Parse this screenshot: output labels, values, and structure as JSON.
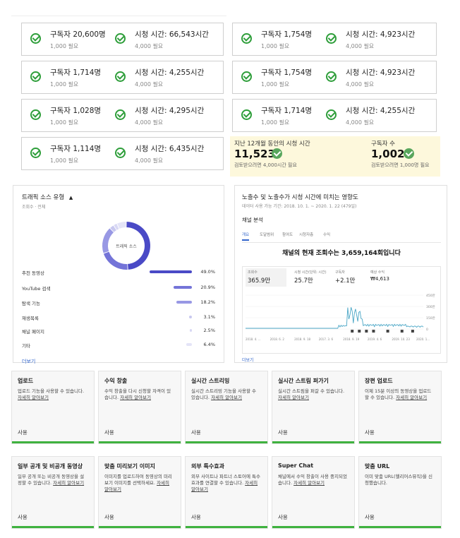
{
  "requirements": [
    {
      "a": {
        "label": "구독자 20,600명",
        "req": "1,000 필요"
      },
      "b": {
        "label": "시청 시간: 66,543시간",
        "req": "4,000 필요"
      }
    },
    {
      "a": {
        "label": "구독자 1,754명",
        "req": "1,000 필요"
      },
      "b": {
        "label": "시청 시간: 4,923시간",
        "req": "4,000 필요"
      }
    },
    {
      "a": {
        "label": "구독자 1,714명",
        "req": "1,000 필요"
      },
      "b": {
        "label": "시청 시간: 4,255시간",
        "req": "4,000 필요"
      }
    },
    {
      "a": {
        "label": "구독자 1,754명",
        "req": "1,000 필요"
      },
      "b": {
        "label": "시청 시간: 4,923시간",
        "req": "4,000 필요"
      }
    },
    {
      "a": {
        "label": "구독자 1,028명",
        "req": "1,000 필요"
      },
      "b": {
        "label": "시청 시간: 4,295시간",
        "req": "4,000 필요"
      }
    },
    {
      "a": {
        "label": "구독자 1,714명",
        "req": "1,000 필요"
      },
      "b": {
        "label": "시청 시간: 4,255시간",
        "req": "4,000 필요"
      }
    },
    {
      "a": {
        "label": "구독자 1,114명",
        "req": "1,000 필요"
      },
      "b": {
        "label": "시청 시간: 6,435시간",
        "req": "4,000 필요"
      }
    }
  ],
  "eligibility": {
    "watch_title": "지난 12개월 동안의 시청 시간",
    "watch_value": "11,523",
    "watch_note": "검토받으려면 4,000시간 필요",
    "subs_title": "구독자 수",
    "subs_value": "1,002",
    "subs_note": "검토받으려면 1,000명 필요",
    "bg_color": "#fdf8dc",
    "check_color": "#58a65c"
  },
  "traffic": {
    "title": "트래픽 소스 유형",
    "subtitle": "조회수 · 전체",
    "donut_label": "트래픽 소스",
    "rows": [
      {
        "label": "추천 동영상",
        "value": "49.0%",
        "pct": 49.0
      },
      {
        "label": "YouTube 검색",
        "value": "20.9%",
        "pct": 20.9
      },
      {
        "label": "탐색 기능",
        "value": "18.2%",
        "pct": 18.2
      },
      {
        "label": "재생목록",
        "value": "3.1%",
        "pct": 3.1
      },
      {
        "label": "채널 페이지",
        "value": "2.5%",
        "pct": 2.5
      },
      {
        "label": "기타",
        "value": "6.4%",
        "pct": 6.4
      }
    ],
    "more": "더보기",
    "accent": "#5454cc"
  },
  "impressions": {
    "title": "노출수 및 노출수가 시청 시간에 미치는 영향도",
    "subtitle": "데이터 사용 가능 기간: 2018. 10. 1. ~ 2020. 1. 22 (479일)",
    "channel": "채널 분석",
    "tabs": [
      "개요",
      "도달범위",
      "참여도",
      "시청자층",
      "수익"
    ],
    "headline": "채널의 현재 조회수는 3,659,164회입니다",
    "metrics": [
      {
        "name": "조회수",
        "value": "365.9만"
      },
      {
        "name": "시청 시간(단위: 시간)",
        "value": "25.7만"
      },
      {
        "name": "구독자",
        "value": "+2.1만"
      },
      {
        "name": "예상 수익",
        "value": "₩4,613"
      }
    ],
    "x_ticks": [
      "2018. 4. ...",
      "2018. 6. 2",
      "2018. 9. 18",
      "2017. 3. 6",
      "2018. 9. 19",
      "2019. 4. 6",
      "2019. 10. 23",
      "2020. 1..."
    ],
    "y_ticks": [
      "450만",
      "300만",
      "150만",
      "0"
    ],
    "more": "더보기"
  },
  "features": [
    {
      "title": "업로드",
      "desc": "업로드 기능을 사용할 수 있습니다.",
      "link": "자세히 알아보기",
      "status": "사용"
    },
    {
      "title": "수익 창출",
      "desc": "수익 창출을 다시 신청할 자격이 있습니다.",
      "link": "자세히 알아보기",
      "status": "사용"
    },
    {
      "title": "실시간 스트리밍",
      "desc": "실시간 스트리밍 기능을 사용할 수 있습니다.",
      "link": "자세히 알아보기",
      "status": "사용"
    },
    {
      "title": "실시간 스트림 퍼가기",
      "desc": "실시간 스트림을 퍼갈 수 있습니다.",
      "link": "자세히 알아보기",
      "status": "사용"
    },
    {
      "title": "장편 업로드",
      "desc": "이제 15분 이상의 동영상을 업로드할 수 있습니다.",
      "link": "자세히 알아보기",
      "status": "사용"
    },
    {
      "title": "일부 공개 및 비공개 동영상",
      "desc": "일부 공개 또는 비공개 동영상을 설정할 수 있습니다.",
      "link": "자세히 알아보기",
      "status": "사용"
    },
    {
      "title": "맞춤 미리보기 이미지",
      "desc": "이미지를 업로드하여 동영상의 미리보기 이미지를 선택하세요.",
      "link": "자세히 알아보기",
      "status": "사용"
    },
    {
      "title": "외부 특수효과",
      "desc": "외부 사이트나 파트너 스토어에 특수효과를 연결할 수 있습니다.",
      "link": "자세히 알아보기",
      "status": "사용"
    },
    {
      "title": "Super Chat",
      "desc": "채널에서 수익 창출이 사용 중지되었습니다.",
      "link": "자세히 알아보기",
      "status": "사용"
    },
    {
      "title": "맞춤 URL",
      "desc": "이미 맞춤 URL(헬리어스뮤직)을 신청했습니다.",
      "link": "",
      "status": "사용"
    }
  ],
  "colors": {
    "check": "#2e9e3a",
    "enabled_bar": "#3fb23f",
    "chart_line": "#4aa6c6"
  }
}
